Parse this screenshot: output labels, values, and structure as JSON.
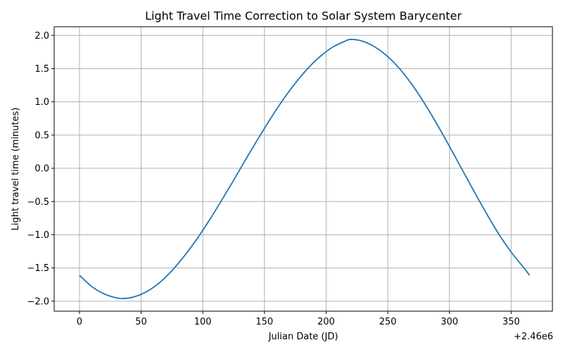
{
  "chart_data": {
    "type": "line",
    "title": "Light Travel Time Correction to Solar System Barycenter",
    "xlabel": "Julian Date (JD)",
    "ylabel": "Light travel time (minutes)",
    "x_offset_label": "+2.46e6",
    "xlim": [
      -20.5,
      383.5
    ],
    "ylim": [
      -2.15,
      2.13
    ],
    "xticks": [
      0,
      50,
      100,
      150,
      200,
      250,
      300,
      350
    ],
    "xtick_labels": [
      "0",
      "50",
      "100",
      "150",
      "200",
      "250",
      "300",
      "350"
    ],
    "yticks": [
      -2.0,
      -1.5,
      -1.0,
      -0.5,
      0.0,
      0.5,
      1.0,
      1.5,
      2.0
    ],
    "ytick_labels": [
      "−2.0",
      "−1.5",
      "−1.0",
      "−0.5",
      "0.0",
      "0.5",
      "1.0",
      "1.5",
      "2.0"
    ],
    "grid": true,
    "color": "#1f77b4",
    "series": [
      {
        "x": [
          0,
          10,
          20,
          30,
          36,
          45,
          55,
          65,
          75,
          85,
          95,
          105,
          115,
          125,
          135,
          145,
          155,
          165,
          175,
          185,
          195,
          205,
          215,
          220,
          230,
          240,
          250,
          260,
          270,
          280,
          290,
          300,
          310,
          320,
          330,
          340,
          350,
          360,
          365
        ],
        "y": [
          -1.61,
          -1.78,
          -1.89,
          -1.95,
          -1.96,
          -1.93,
          -1.85,
          -1.72,
          -1.54,
          -1.32,
          -1.07,
          -0.79,
          -0.49,
          -0.18,
          0.14,
          0.45,
          0.75,
          1.03,
          1.28,
          1.5,
          1.68,
          1.82,
          1.91,
          1.94,
          1.91,
          1.82,
          1.68,
          1.49,
          1.25,
          0.97,
          0.66,
          0.33,
          -0.01,
          -0.35,
          -0.68,
          -0.99,
          -1.26,
          -1.49,
          -1.61
        ]
      }
    ]
  }
}
